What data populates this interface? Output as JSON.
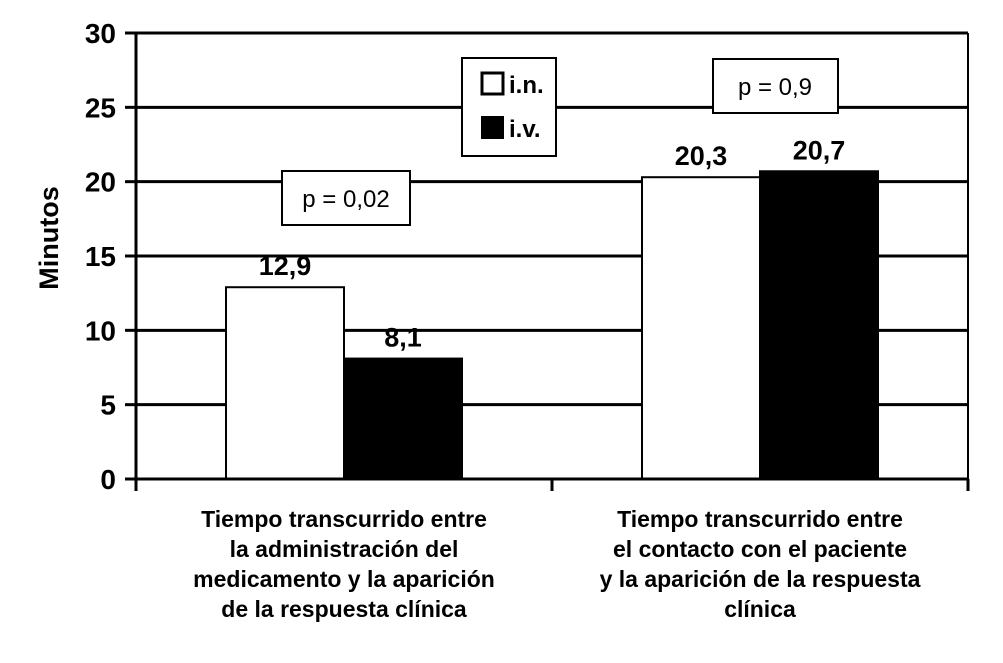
{
  "chart_data": {
    "type": "bar",
    "ylabel": "Minutos",
    "ylim": [
      0,
      30
    ],
    "yticks": [
      0,
      5,
      10,
      15,
      20,
      25,
      30
    ],
    "grid": true,
    "legend_position": "top-center",
    "categories": [
      [
        "Tiempo transcurrido entre",
        "la administración del",
        "medicamento y la aparición",
        "de la respuesta clínica"
      ],
      [
        "Tiempo transcurrido entre",
        "el contacto con el paciente",
        "y la aparición de la respuesta",
        "clínica"
      ]
    ],
    "series": [
      {
        "name": "i.n.",
        "color": "#ffffff",
        "values": [
          12.9,
          20.3
        ],
        "labels": [
          "12,9",
          "20,3"
        ]
      },
      {
        "name": "i.v.",
        "color": "#000000",
        "values": [
          8.1,
          20.7
        ],
        "labels": [
          "8,1",
          "20,7"
        ]
      }
    ],
    "annotations": [
      "p = 0,02",
      "p = 0,9"
    ]
  }
}
